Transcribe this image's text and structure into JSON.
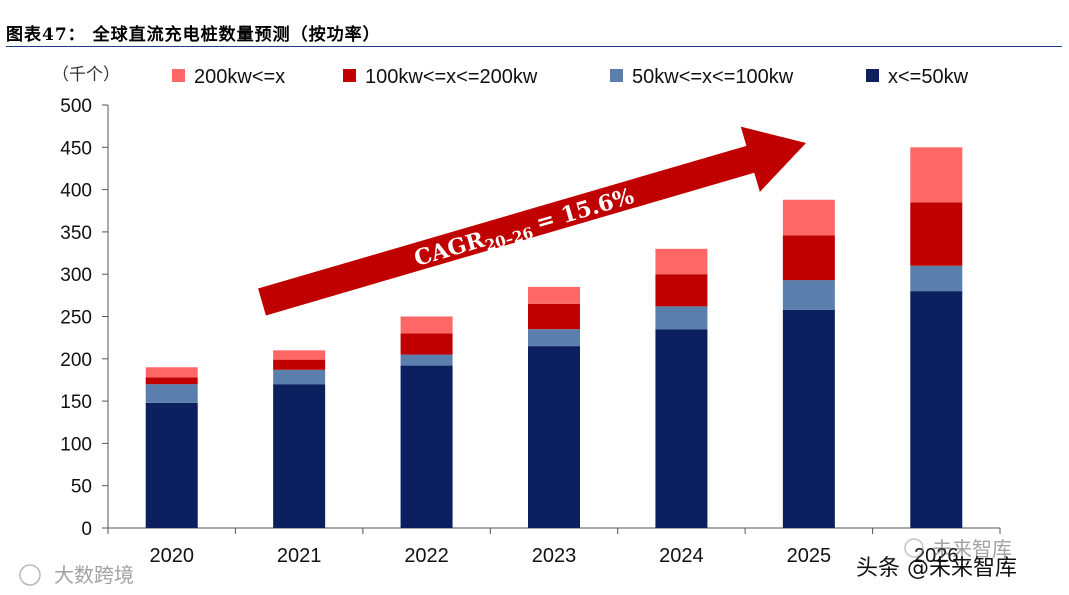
{
  "header": {
    "title": "图表47：  全球直流充电桩数量预测（按功率）"
  },
  "chart_data": {
    "type": "bar",
    "stacked": true,
    "unit_label": "（千个）",
    "categories": [
      "2020",
      "2021",
      "2022",
      "2023",
      "2024",
      "2025",
      "2026"
    ],
    "ylim": [
      0,
      500
    ],
    "yticks": [
      0,
      50,
      100,
      150,
      200,
      250,
      300,
      350,
      400,
      450,
      500
    ],
    "series": [
      {
        "name": "x<=50kw",
        "color": "#0c1f5e",
        "values": [
          148,
          170,
          192,
          215,
          235,
          258,
          280
        ]
      },
      {
        "name": "50kw<=x<=100kw",
        "color": "#5b7fad",
        "values": [
          22,
          17,
          13,
          20,
          27,
          35,
          30
        ]
      },
      {
        "name": "100kw<=x<=200kw",
        "color": "#c00000",
        "values": [
          8,
          12,
          25,
          30,
          38,
          53,
          75
        ]
      },
      {
        "name": "200kw<=x",
        "color": "#ff6666",
        "values": [
          12,
          11,
          20,
          20,
          30,
          42,
          65
        ]
      }
    ],
    "legend_order": [
      "200kw<=x",
      "100kw<=x<=200kw",
      "50kw<=x<=100kw",
      "x<=50kw"
    ],
    "annotation": {
      "text": "CAGR",
      "subscript": "20–26",
      "value": "= 15.6%",
      "color": "#c00000"
    }
  },
  "watermarks": {
    "left": "大数跨境",
    "right_top": "未来智库",
    "right_bottom": "头条 @未来智库"
  }
}
